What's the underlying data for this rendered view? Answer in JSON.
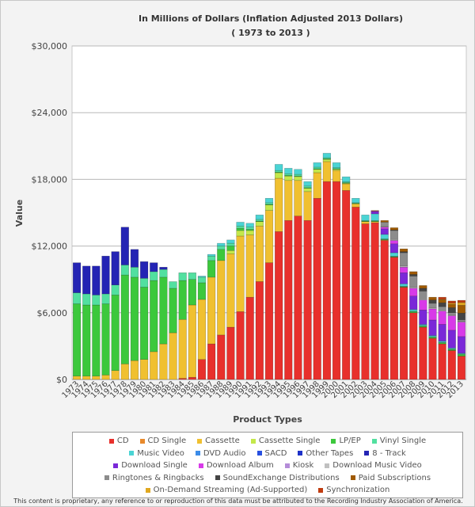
{
  "chart_data": {
    "type": "bar",
    "stacked": true,
    "title": "In Millions of Dollars (Inflation Adjusted 2013 Dollars)",
    "subtitle": "( 1973 to 2013 )",
    "xlabel": "Product Types",
    "ylabel": "Value",
    "ylim": [
      0,
      30000
    ],
    "yticks": [
      "$0",
      "$6,000",
      "$12,000",
      "$18,000",
      "$24,000",
      "$30,000"
    ],
    "grid": true,
    "legend_position": "bottom",
    "categories": [
      "1973",
      "1974",
      "1975",
      "1976",
      "1977",
      "1978",
      "1979",
      "1980",
      "1981",
      "1982",
      "1983",
      "1984",
      "1985",
      "1986",
      "1987",
      "1988",
      "1989",
      "1990",
      "1991",
      "1992",
      "1993",
      "1994",
      "1995",
      "1996",
      "1997",
      "1998",
      "1999",
      "2000",
      "2001",
      "2002",
      "2003",
      "2004",
      "2005",
      "2006",
      "2007",
      "2008",
      "2009",
      "2010",
      "2011",
      "2012",
      "2013"
    ],
    "series": [
      {
        "name": "CD",
        "color": "#e8302c",
        "values": [
          0,
          0,
          0,
          0,
          0,
          0,
          0,
          0,
          0,
          0,
          0,
          100,
          200,
          1800,
          3200,
          4000,
          4700,
          6100,
          7400,
          8800,
          10500,
          13300,
          14300,
          14700,
          14300,
          16300,
          17800,
          17800,
          17000,
          15500,
          14000,
          14100,
          12500,
          11000,
          8300,
          6000,
          4700,
          3700,
          3200,
          2600,
          2100
        ]
      },
      {
        "name": "CD Single",
        "color": "#e88a2c",
        "values": [
          0,
          0,
          0,
          0,
          0,
          0,
          0,
          0,
          0,
          0,
          0,
          0,
          0,
          0,
          0,
          0,
          0,
          0,
          0,
          0,
          0,
          0,
          0,
          0,
          0,
          0,
          0,
          0,
          0,
          0,
          0,
          0,
          0,
          0,
          0,
          0,
          0,
          0,
          0,
          0,
          0
        ]
      },
      {
        "name": "Cassette",
        "color": "#f0c030",
        "values": [
          300,
          300,
          300,
          400,
          800,
          1400,
          1700,
          1800,
          2500,
          3200,
          4200,
          5300,
          6500,
          5400,
          6000,
          6700,
          6600,
          6800,
          5600,
          5000,
          4700,
          4800,
          3600,
          3200,
          2600,
          2300,
          1800,
          1000,
          600,
          300,
          200,
          100,
          50,
          0,
          0,
          0,
          0,
          0,
          0,
          0,
          0
        ]
      },
      {
        "name": "Cassette Single",
        "color": "#c4e84a",
        "values": [
          0,
          0,
          0,
          0,
          0,
          0,
          0,
          0,
          0,
          0,
          0,
          0,
          0,
          0,
          0,
          0,
          300,
          500,
          400,
          400,
          500,
          500,
          400,
          350,
          300,
          300,
          200,
          100,
          50,
          0,
          0,
          0,
          0,
          0,
          0,
          0,
          0,
          0,
          0,
          0,
          0
        ]
      },
      {
        "name": "LP/EP",
        "color": "#3cc83c",
        "values": [
          6500,
          6400,
          6400,
          6400,
          6800,
          8000,
          7500,
          6500,
          6400,
          6000,
          4000,
          3500,
          2300,
          1500,
          1500,
          1000,
          400,
          200,
          100,
          50,
          50,
          50,
          50,
          50,
          50,
          50,
          50,
          50,
          50,
          50,
          50,
          50,
          50,
          50,
          50,
          100,
          100,
          100,
          100,
          100,
          150
        ]
      },
      {
        "name": "Vinyl Single",
        "color": "#52e0a0",
        "values": [
          1000,
          1000,
          900,
          900,
          900,
          900,
          900,
          800,
          800,
          700,
          600,
          700,
          600,
          500,
          400,
          300,
          250,
          200,
          200,
          150,
          150,
          150,
          150,
          150,
          150,
          150,
          100,
          100,
          80,
          50,
          50,
          50,
          50,
          50,
          50,
          50,
          50,
          50,
          50,
          50,
          50
        ]
      },
      {
        "name": "Music Video",
        "color": "#4ad4d4",
        "values": [
          0,
          0,
          0,
          0,
          0,
          0,
          0,
          0,
          0,
          0,
          0,
          0,
          0,
          100,
          150,
          250,
          300,
          350,
          350,
          400,
          400,
          550,
          500,
          450,
          400,
          400,
          400,
          450,
          450,
          400,
          500,
          600,
          400,
          300,
          200,
          150,
          100,
          100,
          100,
          80,
          60
        ]
      },
      {
        "name": "DVD Audio",
        "color": "#3c8ce8",
        "values": [
          0,
          0,
          0,
          0,
          0,
          0,
          0,
          0,
          0,
          0,
          0,
          0,
          0,
          0,
          0,
          0,
          0,
          0,
          0,
          0,
          0,
          0,
          0,
          0,
          0,
          0,
          0,
          0,
          0,
          0,
          0,
          0,
          0,
          0,
          0,
          0,
          0,
          0,
          0,
          0,
          0
        ]
      },
      {
        "name": "SACD",
        "color": "#2850e0",
        "values": [
          0,
          0,
          0,
          0,
          0,
          0,
          0,
          0,
          0,
          0,
          0,
          0,
          0,
          0,
          0,
          0,
          0,
          0,
          0,
          0,
          0,
          0,
          0,
          0,
          0,
          0,
          0,
          0,
          0,
          0,
          0,
          0,
          0,
          0,
          0,
          0,
          0,
          0,
          0,
          0,
          0
        ]
      },
      {
        "name": "Other Tapes",
        "color": "#1e32c8",
        "values": [
          0,
          0,
          0,
          0,
          0,
          0,
          0,
          0,
          0,
          0,
          0,
          0,
          0,
          0,
          0,
          0,
          0,
          0,
          0,
          0,
          0,
          0,
          0,
          0,
          0,
          0,
          0,
          0,
          0,
          0,
          0,
          0,
          0,
          0,
          0,
          0,
          0,
          0,
          0,
          0,
          0
        ]
      },
      {
        "name": "8 - Track",
        "color": "#2424b4",
        "values": [
          2700,
          2500,
          2600,
          3400,
          3000,
          3400,
          1600,
          1500,
          800,
          200,
          0,
          0,
          0,
          0,
          0,
          0,
          0,
          0,
          0,
          0,
          0,
          0,
          0,
          0,
          0,
          0,
          0,
          0,
          0,
          0,
          0,
          0,
          0,
          0,
          0,
          0,
          0,
          0,
          0,
          0,
          0
        ]
      },
      {
        "name": "Download Single",
        "color": "#7a28d8",
        "values": [
          0,
          0,
          0,
          0,
          0,
          0,
          0,
          0,
          0,
          0,
          0,
          0,
          0,
          0,
          0,
          0,
          0,
          0,
          0,
          0,
          0,
          0,
          0,
          0,
          0,
          0,
          0,
          0,
          0,
          0,
          0,
          200,
          500,
          800,
          1000,
          1200,
          1300,
          1400,
          1500,
          1600,
          1500
        ]
      },
      {
        "name": "Download Album",
        "color": "#d83ae8",
        "values": [
          0,
          0,
          0,
          0,
          0,
          0,
          0,
          0,
          0,
          0,
          0,
          0,
          0,
          0,
          0,
          0,
          0,
          0,
          0,
          0,
          0,
          0,
          0,
          0,
          0,
          0,
          0,
          0,
          0,
          0,
          0,
          50,
          150,
          300,
          500,
          700,
          900,
          1000,
          1200,
          1300,
          1300
        ]
      },
      {
        "name": "Kiosk",
        "color": "#b48cd8",
        "values": [
          0,
          0,
          0,
          0,
          0,
          0,
          0,
          0,
          0,
          0,
          0,
          0,
          0,
          0,
          0,
          0,
          0,
          0,
          0,
          0,
          0,
          0,
          0,
          0,
          0,
          0,
          0,
          0,
          0,
          0,
          0,
          0,
          0,
          0,
          0,
          0,
          0,
          0,
          0,
          0,
          0
        ]
      },
      {
        "name": "Download Music Video",
        "color": "#c0c0c0",
        "values": [
          0,
          0,
          0,
          0,
          0,
          0,
          0,
          0,
          0,
          0,
          0,
          0,
          0,
          0,
          0,
          0,
          0,
          0,
          0,
          0,
          0,
          0,
          0,
          0,
          0,
          0,
          0,
          0,
          0,
          0,
          0,
          0,
          50,
          100,
          100,
          100,
          100,
          100,
          100,
          80,
          60
        ]
      },
      {
        "name": "Ringtones & Ringbacks",
        "color": "#8c8c8c",
        "values": [
          0,
          0,
          0,
          0,
          0,
          0,
          0,
          0,
          0,
          0,
          0,
          0,
          0,
          0,
          0,
          0,
          0,
          0,
          0,
          0,
          0,
          0,
          0,
          0,
          0,
          0,
          0,
          0,
          0,
          0,
          0,
          0,
          400,
          800,
          1200,
          1000,
          700,
          400,
          300,
          200,
          150
        ]
      },
      {
        "name": "SoundExchange Distributions",
        "color": "#444444",
        "values": [
          0,
          0,
          0,
          0,
          0,
          0,
          0,
          0,
          0,
          0,
          0,
          0,
          0,
          0,
          0,
          0,
          0,
          0,
          0,
          0,
          0,
          0,
          0,
          0,
          0,
          0,
          0,
          0,
          0,
          0,
          0,
          0,
          0,
          50,
          100,
          150,
          250,
          300,
          350,
          450,
          600
        ]
      },
      {
        "name": "Paid Subscriptions",
        "color": "#a05a00",
        "values": [
          0,
          0,
          0,
          0,
          0,
          0,
          0,
          0,
          0,
          0,
          0,
          0,
          0,
          0,
          0,
          0,
          0,
          0,
          0,
          0,
          0,
          0,
          0,
          0,
          0,
          0,
          0,
          0,
          0,
          0,
          0,
          50,
          150,
          200,
          250,
          250,
          250,
          250,
          250,
          300,
          700
        ]
      },
      {
        "name": "On-Demand Streaming (Ad-Supported)",
        "color": "#e0a820",
        "values": [
          0,
          0,
          0,
          0,
          0,
          0,
          0,
          0,
          0,
          0,
          0,
          0,
          0,
          0,
          0,
          0,
          0,
          0,
          0,
          0,
          0,
          0,
          0,
          0,
          0,
          0,
          0,
          0,
          0,
          0,
          0,
          0,
          0,
          0,
          0,
          0,
          0,
          0,
          50,
          100,
          250
        ]
      },
      {
        "name": "Synchronization",
        "color": "#c03c10",
        "values": [
          0,
          0,
          0,
          0,
          0,
          0,
          0,
          0,
          0,
          0,
          0,
          0,
          0,
          0,
          0,
          0,
          0,
          0,
          0,
          0,
          0,
          0,
          0,
          0,
          0,
          0,
          0,
          0,
          0,
          0,
          0,
          0,
          0,
          0,
          0,
          0,
          0,
          0,
          200,
          200,
          200
        ]
      }
    ]
  },
  "legend_rows": [
    [
      "CD",
      "CD Single",
      "Cassette",
      "Cassette Single",
      "LP/EP",
      "Vinyl Single"
    ],
    [
      "Music Video",
      "DVD Audio",
      "SACD",
      "Other Tapes",
      "8 - Track"
    ],
    [
      "Download Single",
      "Download Album",
      "Kiosk",
      "Download Music Video"
    ],
    [
      "Ringtones & Ringbacks",
      "SoundExchange Distributions",
      "Paid Subscriptions"
    ],
    [
      "On-Demand Streaming (Ad-Supported)",
      "Synchronization"
    ]
  ],
  "footer": "This content is proprietary, any reference to or reproduction of this data must be attributed to the Recording Industry Association of America."
}
